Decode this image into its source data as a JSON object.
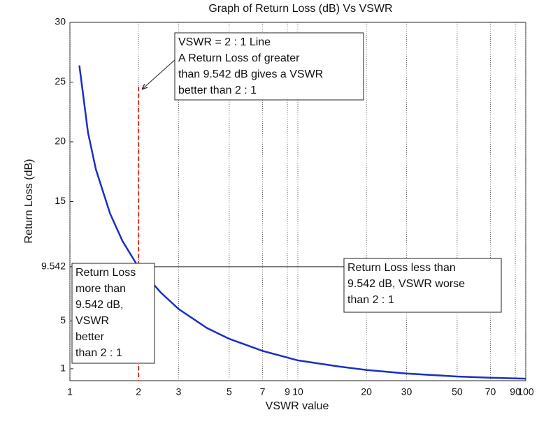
{
  "chart_data": {
    "type": "line",
    "title": "Graph of Return Loss (dB) Vs VSWR",
    "x_label": "VSWR value",
    "y_label": "Return Loss (dB)",
    "x": [
      1.1,
      1.2,
      1.3,
      1.5,
      1.7,
      2,
      2.5,
      3,
      4,
      5,
      7,
      10,
      15,
      20,
      30,
      50,
      70,
      100
    ],
    "values": [
      26.4,
      20.8,
      17.7,
      14.0,
      11.7,
      9.5,
      7.4,
      6.0,
      4.4,
      3.5,
      2.5,
      1.7,
      1.2,
      0.9,
      0.6,
      0.35,
      0.25,
      0.17
    ],
    "color": "#1a2fc4",
    "xlim": [
      1,
      100
    ],
    "xscale": "log",
    "xticks": [
      1,
      2,
      3,
      5,
      7,
      9,
      10,
      20,
      30,
      50,
      70,
      90,
      100
    ],
    "ylim": [
      0,
      30
    ],
    "yticks": [
      1,
      5,
      9.542,
      15,
      20,
      25,
      30
    ],
    "grid": true,
    "reference_line": {
      "x": 2,
      "color": "#e0301e"
    },
    "annotations": [
      {
        "lines": [
          "VSWR = 2 : 1 Line",
          "A Return Loss of greater",
          "than 9.542 dB gives a VSWR",
          "better than 2 : 1"
        ]
      },
      {
        "lines": [
          "Return Loss",
          "more than",
          "9.542 dB,",
          "VSWR",
          "better",
          "than 2 : 1"
        ]
      },
      {
        "lines": [
          "Return Loss less than",
          "9.542 dB, VSWR worse",
          "than 2 : 1"
        ]
      }
    ]
  }
}
